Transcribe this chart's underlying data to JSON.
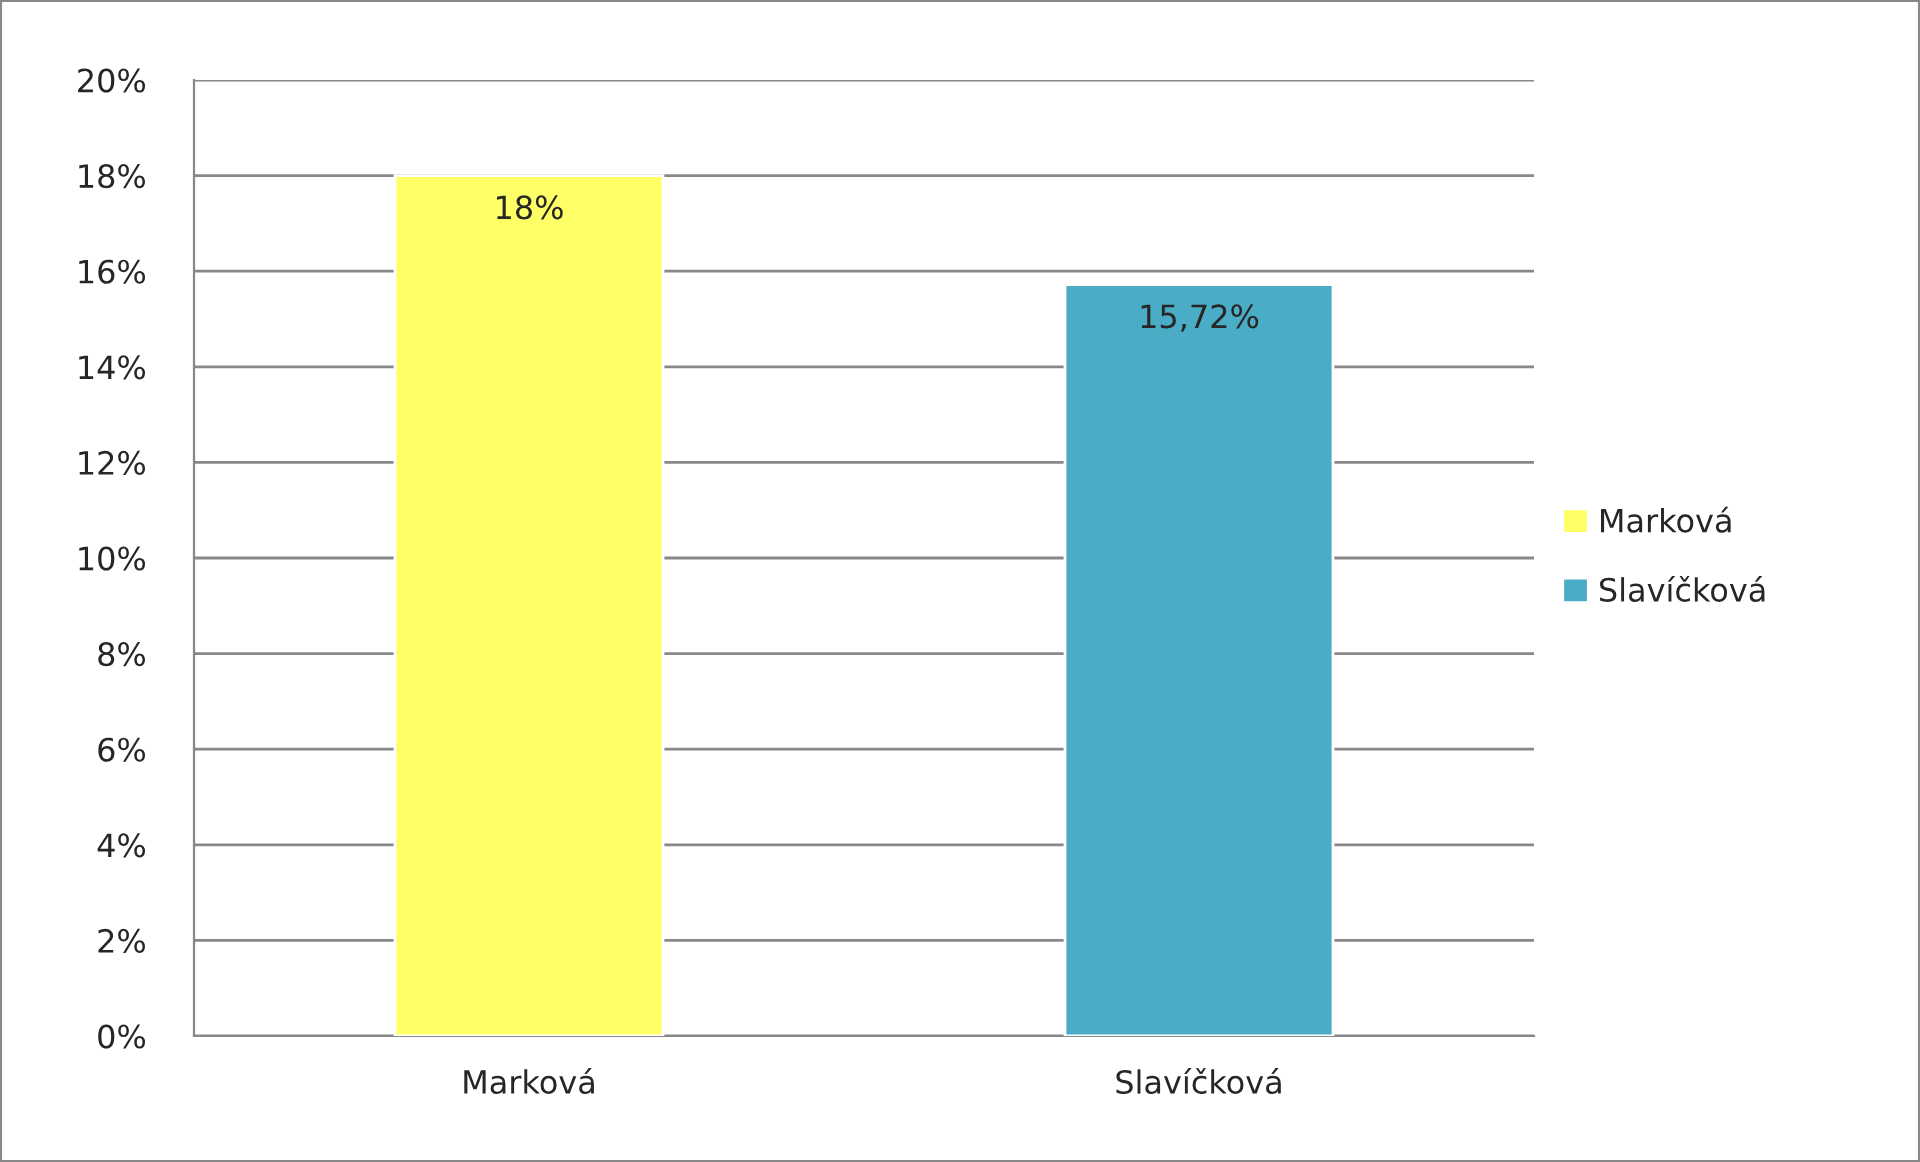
{
  "chart_data": {
    "type": "bar",
    "categories": [
      "Marková",
      "Slavíčková"
    ],
    "series": [
      {
        "name": "Marková",
        "color": "#ffff66",
        "values": [
          18,
          null
        ],
        "value_labels": [
          "18%",
          null
        ]
      },
      {
        "name": "Slavíčková",
        "color": "#4bacc6",
        "values": [
          null,
          15.72
        ],
        "value_labels": [
          null,
          "15,72%"
        ]
      }
    ],
    "ylim": [
      0,
      20
    ],
    "yticks": [
      {
        "value": 0,
        "label": "0%"
      },
      {
        "value": 2,
        "label": "2%"
      },
      {
        "value": 4,
        "label": "4%"
      },
      {
        "value": 6,
        "label": "6%"
      },
      {
        "value": 8,
        "label": "8%"
      },
      {
        "value": 10,
        "label": "10%"
      },
      {
        "value": 12,
        "label": "12%"
      },
      {
        "value": 14,
        "label": "14%"
      },
      {
        "value": 16,
        "label": "16%"
      },
      {
        "value": 18,
        "label": "18%"
      },
      {
        "value": 20,
        "label": "20%"
      }
    ],
    "grid": "y",
    "legend": "right"
  }
}
